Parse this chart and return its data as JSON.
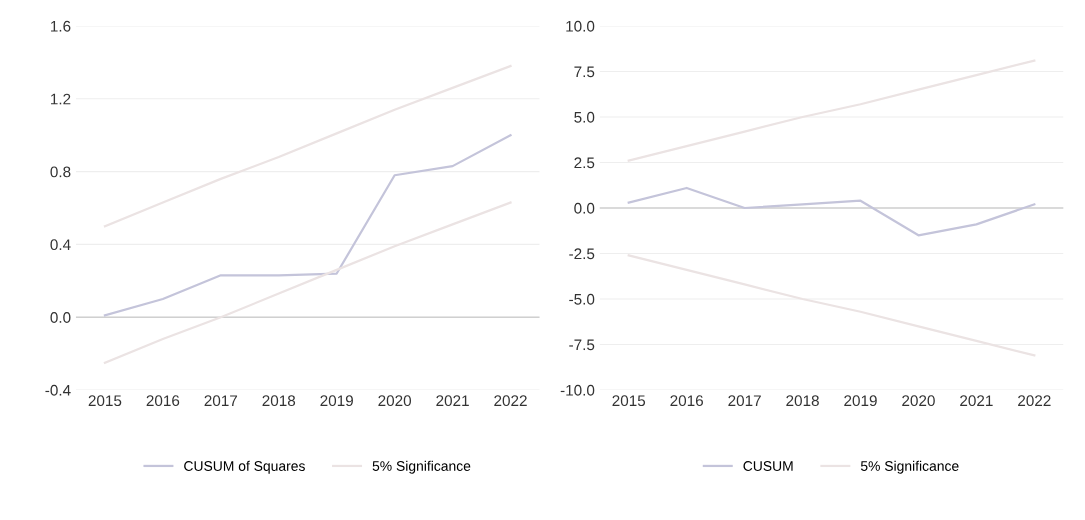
{
  "chart_data": [
    {
      "type": "line",
      "categories": [
        "2015",
        "2016",
        "2017",
        "2018",
        "2019",
        "2020",
        "2021",
        "2022"
      ],
      "series": [
        {
          "name": "CUSUM of Squares",
          "color": "#c4c4da",
          "values": [
            0.01,
            0.1,
            0.23,
            0.23,
            0.24,
            0.78,
            0.83,
            1.0
          ]
        },
        {
          "name": "5% Significance",
          "color": "#ebe3e3",
          "values": [
            0.5,
            0.63,
            0.76,
            0.88,
            1.01,
            1.14,
            1.26,
            1.38
          ]
        },
        {
          "color": "#ebe3e3",
          "values": [
            -0.25,
            -0.12,
            0.0,
            0.13,
            0.26,
            0.39,
            0.51,
            0.63
          ]
        }
      ],
      "ylim": [
        -0.4,
        1.6
      ],
      "yticks": [
        {
          "value": -0.4,
          "label": "-0.4"
        },
        {
          "value": 0,
          "label": "0.0"
        },
        0.4,
        0.8,
        1.2,
        1.6
      ],
      "ref_lines": [
        {
          "axis": "y",
          "value": 0,
          "color": "#d0d0d0"
        }
      ],
      "grid": "y",
      "legend": "bottom",
      "line_style": "solid",
      "marker": "none"
    },
    {
      "type": "line",
      "categories": [
        "2015",
        "2016",
        "2017",
        "2018",
        "2019",
        "2020",
        "2021",
        "2022"
      ],
      "series": [
        {
          "name": "CUSUM",
          "color": "#c4c4da",
          "values": [
            0.3,
            1.1,
            0.0,
            0.2,
            0.4,
            -1.5,
            -0.9,
            0.2
          ]
        },
        {
          "name": "5% Significance",
          "color": "#ebe3e3",
          "values": [
            2.6,
            3.4,
            4.2,
            5.0,
            5.7,
            6.5,
            7.3,
            8.1
          ]
        },
        {
          "color": "#ebe3e3",
          "values": [
            -2.6,
            -3.4,
            -4.2,
            -5.0,
            -5.7,
            -6.5,
            -7.3,
            -8.1
          ]
        }
      ],
      "ylim": [
        -10,
        10
      ],
      "yticks": [
        {
          "value": -10,
          "label": "-10.0"
        },
        {
          "value": -7.5,
          "label": "-7.5"
        },
        {
          "value": -5,
          "label": "-5.0"
        },
        {
          "value": -2.5,
          "label": "-2.5"
        },
        {
          "value": 0,
          "label": "0.0"
        },
        2.5,
        {
          "value": 5,
          "label": "5.0"
        },
        7.5,
        {
          "value": 10,
          "label": "10.0"
        }
      ],
      "ref_lines": [
        {
          "axis": "y",
          "value": 0,
          "color": "#d0d0d0"
        }
      ],
      "grid": "y",
      "legend": "bottom",
      "line_style": "solid",
      "marker": "none"
    }
  ]
}
